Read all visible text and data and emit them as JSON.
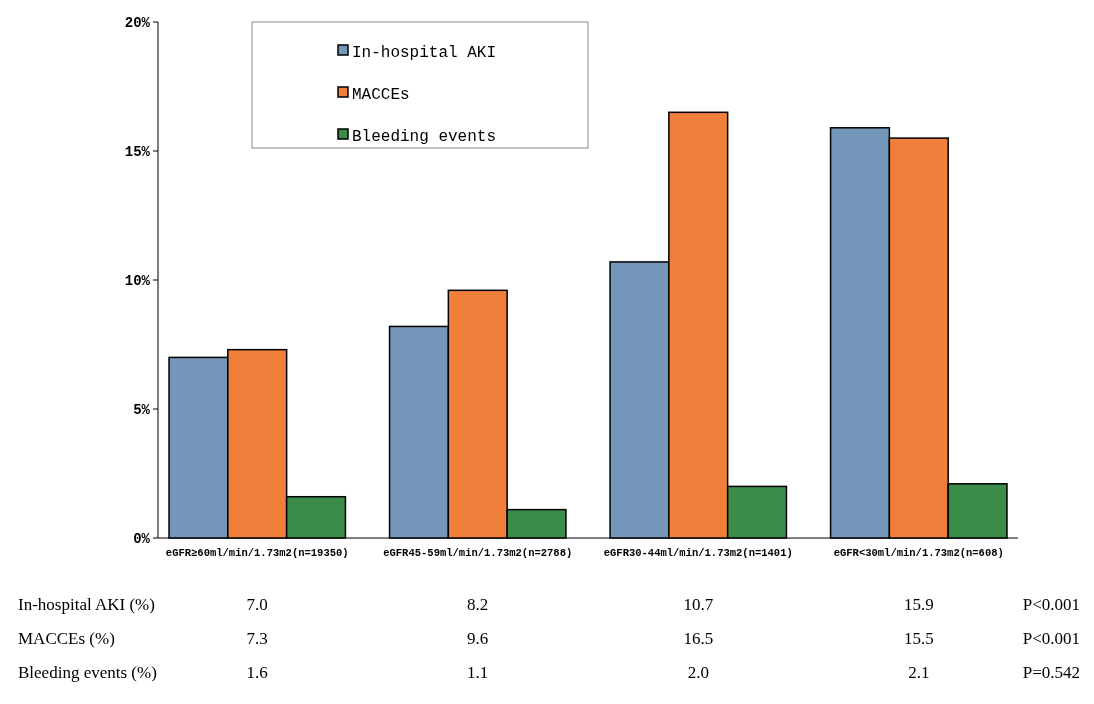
{
  "chart_data": {
    "type": "bar",
    "categories": [
      "eGFR≥60ml/min/1.73m2(n=19350)",
      "eGFR45-59ml/min/1.73m2(n=2788)",
      "eGFR30-44ml/min/1.73m2(n=1401)",
      "eGFR<30ml/min/1.73m2(n=608)"
    ],
    "series": [
      {
        "name": "In-hospital AKI",
        "color": "#7496b8",
        "values": [
          7.0,
          8.2,
          10.7,
          15.9
        ],
        "value_labels": [
          "7.0",
          "8.2",
          "10.7",
          "15.9"
        ]
      },
      {
        "name": "MACCEs",
        "color": "#f07f3c",
        "values": [
          7.3,
          9.6,
          16.5,
          15.5
        ],
        "value_labels": [
          "7.3",
          "9.6",
          "16.5",
          "15.5"
        ]
      },
      {
        "name": "Bleeding events",
        "color": "#3a8c48",
        "values": [
          1.6,
          1.1,
          2.0,
          2.1
        ],
        "value_labels": [
          "1.6",
          "1.1",
          "2.0",
          "2.1"
        ]
      }
    ],
    "ylim": [
      0,
      20
    ],
    "yticks": [
      {
        "value": 0,
        "label": "0%"
      },
      {
        "value": 5,
        "label": "5%"
      },
      {
        "value": 10,
        "label": "10%"
      },
      {
        "value": 15,
        "label": "15%"
      },
      {
        "value": 20,
        "label": "20%"
      }
    ],
    "grid": false,
    "legend": "top",
    "annotations": [
      "In-hospital AKI (%)",
      "MACCEs (%)",
      "Bleeding events (%)",
      "P<0.001",
      "P<0.001",
      "P=0.542"
    ]
  }
}
